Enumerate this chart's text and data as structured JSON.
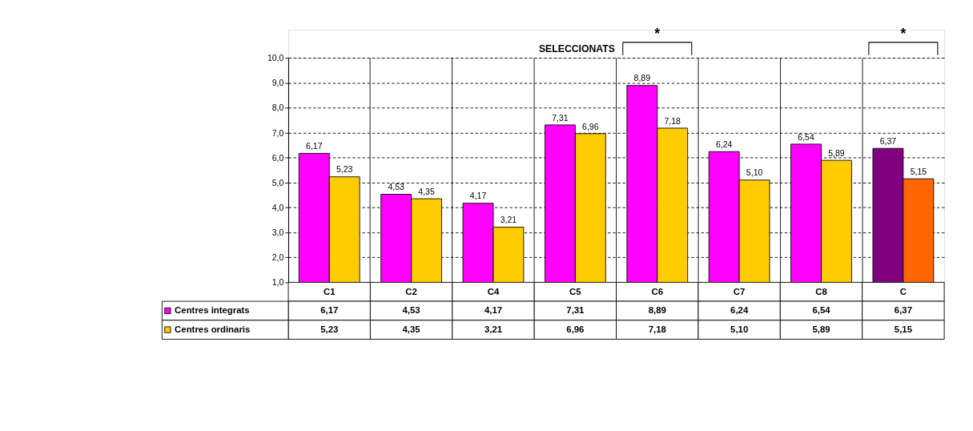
{
  "chart_data": {
    "type": "bar",
    "title": "SELECCIONATS",
    "categories": [
      "C1",
      "C2",
      "C4",
      "C5",
      "C6",
      "C7",
      "C8",
      "C"
    ],
    "series": [
      {
        "name": "Centres integrats",
        "color": "#ff00ff",
        "colors": [
          "#ff00ff",
          "#ff00ff",
          "#ff00ff",
          "#ff00ff",
          "#ff00ff",
          "#ff00ff",
          "#ff00ff",
          "#800080"
        ],
        "values": [
          6.17,
          4.53,
          4.17,
          7.31,
          8.89,
          6.24,
          6.54,
          6.37
        ],
        "value_labels": [
          "6,17",
          "4,53",
          "4,17",
          "7,31",
          "8,89",
          "6,24",
          "6,54",
          "6,37"
        ]
      },
      {
        "name": "Centres ordinaris",
        "color": "#ffcc00",
        "colors": [
          "#ffcc00",
          "#ffcc00",
          "#ffcc00",
          "#ffcc00",
          "#ffcc00",
          "#ffcc00",
          "#ffcc00",
          "#ff6600"
        ],
        "values": [
          5.23,
          4.35,
          3.21,
          6.96,
          7.18,
          5.1,
          5.89,
          5.15
        ],
        "value_labels": [
          "5,23",
          "4,35",
          "3,21",
          "6,96",
          "7,18",
          "5,10",
          "5,89",
          "5,15"
        ]
      }
    ],
    "ylim": [
      1,
      10
    ],
    "yticks": [
      {
        "value": 1,
        "label": "1,0"
      },
      {
        "value": 2,
        "label": "2,0"
      },
      {
        "value": 3,
        "label": "3,0"
      },
      {
        "value": 4,
        "label": "4,0"
      },
      {
        "value": 5,
        "label": "5,0"
      },
      {
        "value": 6,
        "label": "6,0"
      },
      {
        "value": 7,
        "label": "7,0"
      },
      {
        "value": 8,
        "label": "8,0"
      },
      {
        "value": 9,
        "label": "9,0"
      },
      {
        "value": 10,
        "label": "10,0"
      }
    ],
    "grid": true,
    "legend": "bottom left",
    "annotations": [
      "*",
      "*"
    ]
  }
}
